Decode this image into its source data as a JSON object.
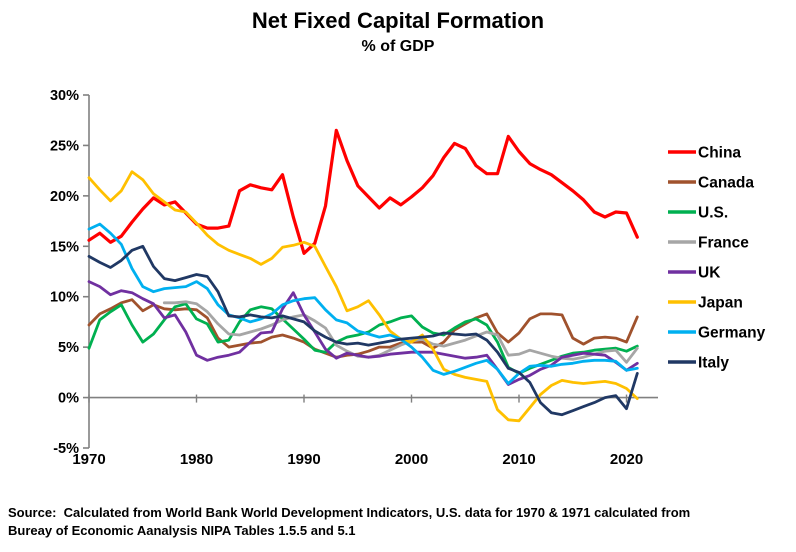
{
  "title": "Net Fixed Capital Formation",
  "subtitle": "% of GDP",
  "source": {
    "line1": "Source:  Calculated from World Bank World Development Indicators, U.S. data for 1970 & 1971 calculated from",
    "line2": "Bureay of Economic Aanalysis NIPA Tables 1.5.5 and 5.1"
  },
  "chart_data": {
    "type": "line",
    "title": "Net Fixed Capital Formation",
    "subtitle": "% of GDP",
    "xlabel": "",
    "ylabel": "",
    "xlim": [
      1970,
      2022
    ],
    "ylim": [
      -5,
      30
    ],
    "x_ticks": [
      1970,
      1980,
      1990,
      2000,
      2010,
      2020
    ],
    "y_ticks": [
      30,
      25,
      20,
      15,
      10,
      5,
      0,
      -5
    ],
    "y_tick_suffix": "%",
    "grid": "zero-line-only",
    "legend_position": "right",
    "axis_color": "#808080",
    "series": [
      {
        "name": "China",
        "color": "#FF0000",
        "width": 3.2,
        "start_year": 1970,
        "values": [
          15.6,
          16.3,
          15.4,
          16.0,
          17.4,
          18.7,
          19.8,
          19.1,
          19.4,
          18.3,
          17.2,
          16.8,
          16.8,
          17.0,
          20.5,
          21.1,
          20.8,
          20.6,
          22.1,
          17.9,
          14.3,
          15.3,
          19.0,
          26.5,
          23.5,
          21.0,
          19.9,
          18.8,
          19.8,
          19.1,
          19.9,
          20.8,
          22.0,
          23.8,
          25.2,
          24.7,
          23.0,
          22.2,
          22.2,
          25.9,
          24.4,
          23.2,
          22.6,
          22.1,
          21.3,
          20.5,
          19.6,
          18.4,
          17.9,
          18.4,
          18.3,
          15.9
        ]
      },
      {
        "name": "Canada",
        "color": "#A0522D",
        "width": 2.8,
        "start_year": 1970,
        "values": [
          7.2,
          8.3,
          8.8,
          9.4,
          9.7,
          8.6,
          9.2,
          8.8,
          8.7,
          8.8,
          8.7,
          7.9,
          5.9,
          5.0,
          5.2,
          5.4,
          5.5,
          6.0,
          6.2,
          5.9,
          5.5,
          4.8,
          4.4,
          4.0,
          4.2,
          4.3,
          4.6,
          5.0,
          5.0,
          5.4,
          5.5,
          5.5,
          4.9,
          5.5,
          6.7,
          7.3,
          7.9,
          8.3,
          6.4,
          5.5,
          6.4,
          7.8,
          8.3,
          8.3,
          8.2,
          5.9,
          5.3,
          5.9,
          6.0,
          5.9,
          5.5,
          8.0
        ]
      },
      {
        "name": "U.S.",
        "color": "#00B050",
        "width": 2.8,
        "start_year": 1970,
        "values": [
          4.9,
          7.7,
          8.5,
          9.2,
          7.2,
          5.5,
          6.3,
          7.7,
          9.0,
          9.3,
          7.8,
          7.3,
          5.5,
          5.7,
          7.5,
          8.7,
          9.0,
          8.8,
          7.8,
          6.8,
          5.8,
          4.7,
          4.5,
          5.5,
          6.0,
          6.2,
          6.5,
          7.2,
          7.5,
          7.9,
          8.1,
          7.0,
          6.4,
          6.2,
          6.9,
          7.5,
          7.8,
          7.2,
          5.5,
          3.0,
          2.4,
          2.9,
          3.3,
          3.7,
          4.1,
          4.4,
          4.5,
          4.7,
          4.8,
          4.9,
          4.6,
          5.1
        ]
      },
      {
        "name": "France",
        "color": "#A6A6A6",
        "width": 2.8,
        "start_year": 1977,
        "values": [
          9.4,
          9.4,
          9.5,
          9.3,
          8.5,
          7.3,
          6.3,
          6.2,
          6.5,
          6.8,
          7.2,
          7.7,
          8.0,
          8.2,
          7.6,
          6.9,
          5.2,
          4.6,
          4.1,
          4.0,
          4.2,
          4.7,
          5.2,
          5.6,
          5.8,
          5.3,
          5.1,
          5.4,
          5.7,
          6.1,
          6.5,
          6.2,
          4.2,
          4.3,
          4.7,
          4.4,
          4.1,
          3.9,
          3.8,
          4.0,
          4.3,
          4.6,
          4.7,
          3.5,
          4.9
        ]
      },
      {
        "name": "UK",
        "color": "#7030A0",
        "width": 2.8,
        "start_year": 1970,
        "values": [
          11.5,
          11.0,
          10.2,
          10.6,
          10.4,
          9.8,
          9.3,
          7.9,
          8.2,
          6.5,
          4.2,
          3.7,
          4.0,
          4.2,
          4.5,
          5.5,
          6.4,
          6.5,
          8.8,
          10.4,
          8.2,
          6.5,
          4.8,
          3.9,
          4.4,
          4.2,
          4.0,
          4.1,
          4.3,
          4.4,
          4.5,
          4.5,
          4.5,
          4.3,
          4.1,
          3.9,
          4.0,
          4.2,
          2.8,
          1.3,
          1.8,
          2.2,
          2.8,
          3.2,
          4.0,
          4.2,
          4.4,
          4.3,
          4.2,
          3.5,
          2.7,
          3.4
        ]
      },
      {
        "name": "Japan",
        "color": "#FFC000",
        "width": 2.8,
        "start_year": 1970,
        "values": [
          21.8,
          20.6,
          19.5,
          20.5,
          22.4,
          21.6,
          20.2,
          19.4,
          18.6,
          18.4,
          17.3,
          16.1,
          15.2,
          14.6,
          14.2,
          13.8,
          13.2,
          13.8,
          14.9,
          15.1,
          15.4,
          15.0,
          13.0,
          11.0,
          8.6,
          9.0,
          9.6,
          8.2,
          6.6,
          5.8,
          5.5,
          6.2,
          4.8,
          2.8,
          2.3,
          2.0,
          1.8,
          1.6,
          -1.2,
          -2.2,
          -2.3,
          -1.0,
          0.3,
          1.2,
          1.7,
          1.5,
          1.4,
          1.5,
          1.6,
          1.4,
          0.9,
          -0.1
        ]
      },
      {
        "name": "Germany",
        "color": "#00B0F0",
        "width": 2.8,
        "start_year": 1970,
        "values": [
          16.7,
          17.2,
          16.3,
          15.2,
          12.8,
          11.0,
          10.5,
          10.8,
          10.9,
          11.0,
          11.5,
          10.8,
          9.2,
          8.2,
          7.9,
          7.5,
          7.8,
          8.3,
          9.2,
          9.6,
          9.8,
          9.9,
          8.7,
          7.7,
          7.4,
          6.6,
          6.3,
          6.0,
          6.2,
          5.8,
          5.0,
          4.0,
          2.7,
          2.3,
          2.6,
          3.0,
          3.4,
          3.7,
          2.8,
          1.4,
          2.4,
          3.1,
          3.2,
          3.1,
          3.3,
          3.4,
          3.6,
          3.7,
          3.7,
          3.6,
          2.7,
          2.9
        ]
      },
      {
        "name": "Italy",
        "color": "#203864",
        "width": 2.8,
        "start_year": 1970,
        "values": [
          14.0,
          13.4,
          12.9,
          13.6,
          14.6,
          15.0,
          13.0,
          11.8,
          11.6,
          11.9,
          12.2,
          12.0,
          10.5,
          8.1,
          8.0,
          8.2,
          8.0,
          7.9,
          8.1,
          7.8,
          7.5,
          6.6,
          6.0,
          5.5,
          5.3,
          5.4,
          5.2,
          5.4,
          5.6,
          5.8,
          5.9,
          6.0,
          6.1,
          6.4,
          6.3,
          6.2,
          6.3,
          5.7,
          4.5,
          2.9,
          2.5,
          1.5,
          -0.5,
          -1.5,
          -1.7,
          -1.3,
          -0.9,
          -0.5,
          0.0,
          0.2,
          -1.1,
          2.4
        ]
      }
    ]
  }
}
